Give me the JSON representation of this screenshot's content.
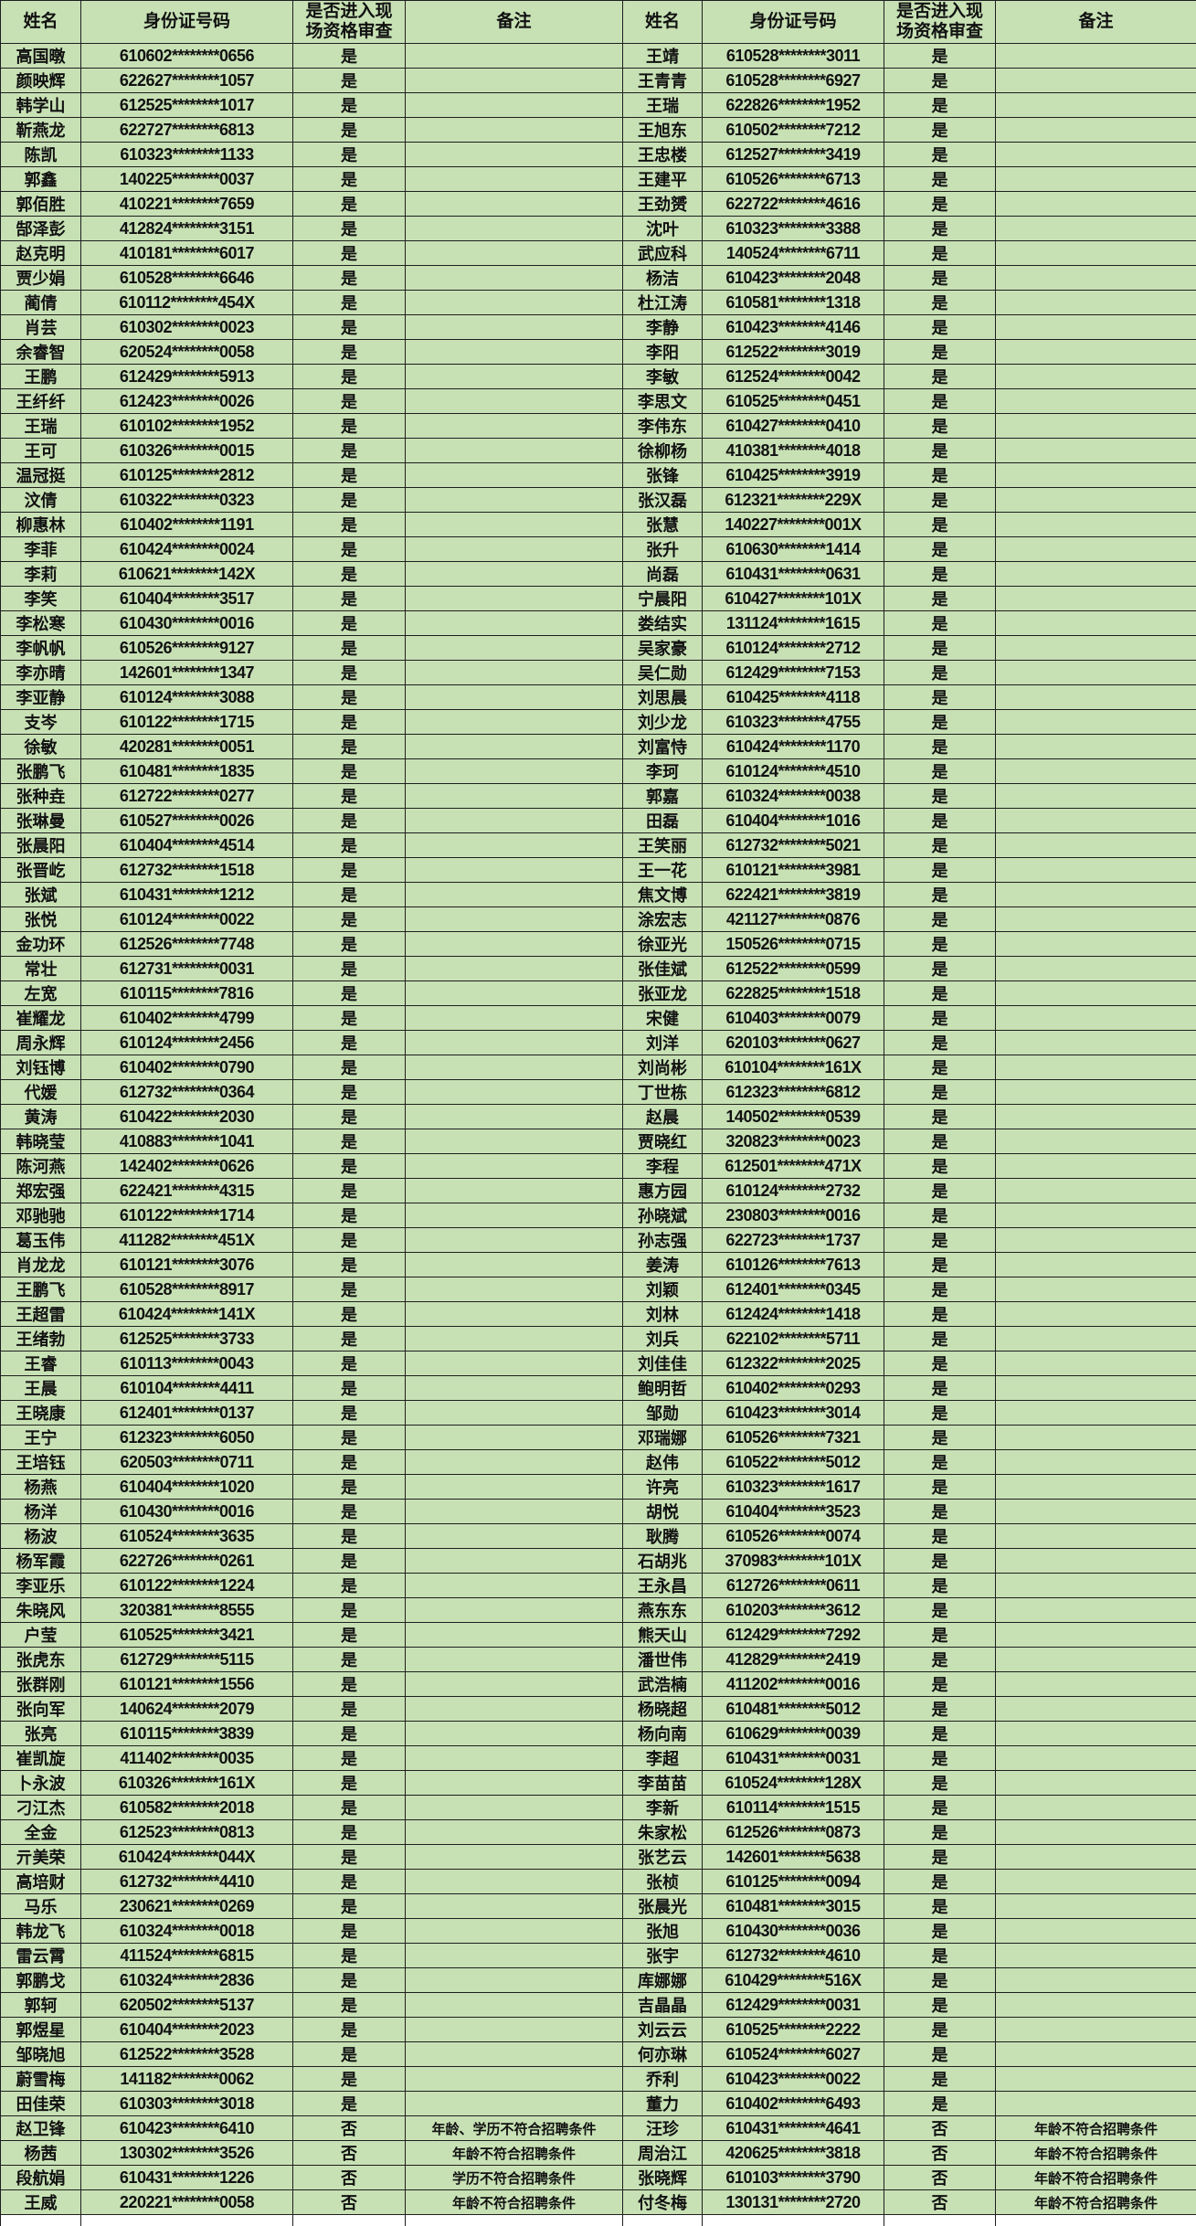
{
  "page": {
    "background": "#ffffff"
  },
  "table": {
    "colors": {
      "cell_fill": "#c7e1b4",
      "border": "#1f1f1f",
      "text": "#111111"
    },
    "headers": {
      "name": "姓名",
      "id": "身份证号码",
      "review": "是否进入现场资格审查",
      "remark": "备注"
    },
    "left_rows": [
      [
        "高国暾",
        "610602********0656",
        "是",
        ""
      ],
      [
        "颜映辉",
        "622627********1057",
        "是",
        ""
      ],
      [
        "韩学山",
        "612525********1017",
        "是",
        ""
      ],
      [
        "靳燕龙",
        "622727********6813",
        "是",
        ""
      ],
      [
        "陈凯",
        "610323********1133",
        "是",
        ""
      ],
      [
        "郭鑫",
        "140225********0037",
        "是",
        ""
      ],
      [
        "郭佰胜",
        "410221********7659",
        "是",
        ""
      ],
      [
        "郜泽彭",
        "412824********3151",
        "是",
        ""
      ],
      [
        "赵克明",
        "410181********6017",
        "是",
        ""
      ],
      [
        "贾少娟",
        "610528********6646",
        "是",
        ""
      ],
      [
        "蔺倩",
        "610112********454X",
        "是",
        ""
      ],
      [
        "肖芸",
        "610302********0023",
        "是",
        ""
      ],
      [
        "余睿智",
        "620524********0058",
        "是",
        ""
      ],
      [
        "王鹏",
        "612429********5913",
        "是",
        ""
      ],
      [
        "王纤纤",
        "612423********0026",
        "是",
        ""
      ],
      [
        "王瑞",
        "610102********1952",
        "是",
        ""
      ],
      [
        "王可",
        "610326********0015",
        "是",
        ""
      ],
      [
        "温冠挺",
        "610125********2812",
        "是",
        ""
      ],
      [
        "汶倩",
        "610322********0323",
        "是",
        ""
      ],
      [
        "柳惠林",
        "610402********1191",
        "是",
        ""
      ],
      [
        "李菲",
        "610424********0024",
        "是",
        ""
      ],
      [
        "李莉",
        "610621********142X",
        "是",
        ""
      ],
      [
        "李笑",
        "610404********3517",
        "是",
        ""
      ],
      [
        "李松寒",
        "610430********0016",
        "是",
        ""
      ],
      [
        "李帆帆",
        "610526********9127",
        "是",
        ""
      ],
      [
        "李亦晴",
        "142601********1347",
        "是",
        ""
      ],
      [
        "李亚静",
        "610124********3088",
        "是",
        ""
      ],
      [
        "支岑",
        "610122********1715",
        "是",
        ""
      ],
      [
        "徐敏",
        "420281********0051",
        "是",
        ""
      ],
      [
        "张鹏飞",
        "610481********1835",
        "是",
        ""
      ],
      [
        "张种垚",
        "612722********0277",
        "是",
        ""
      ],
      [
        "张琳曼",
        "610527********0026",
        "是",
        ""
      ],
      [
        "张晨阳",
        "610404********4514",
        "是",
        ""
      ],
      [
        "张晋屹",
        "612732********1518",
        "是",
        ""
      ],
      [
        "张斌",
        "610431********1212",
        "是",
        ""
      ],
      [
        "张悦",
        "610124********0022",
        "是",
        ""
      ],
      [
        "金功环",
        "612526********7748",
        "是",
        ""
      ],
      [
        "常壮",
        "612731********0031",
        "是",
        ""
      ],
      [
        "左宽",
        "610115********7816",
        "是",
        ""
      ],
      [
        "崔耀龙",
        "610402********4799",
        "是",
        ""
      ],
      [
        "周永辉",
        "610124********2456",
        "是",
        ""
      ],
      [
        "刘钰博",
        "610402********0790",
        "是",
        ""
      ],
      [
        "代媛",
        "612732********0364",
        "是",
        ""
      ],
      [
        "黄涛",
        "610422********2030",
        "是",
        ""
      ],
      [
        "韩晓莹",
        "410883********1041",
        "是",
        ""
      ],
      [
        "陈河燕",
        "142402********0626",
        "是",
        ""
      ],
      [
        "郑宏强",
        "622421********4315",
        "是",
        ""
      ],
      [
        "邓驰驰",
        "610122********1714",
        "是",
        ""
      ],
      [
        "葛玉伟",
        "411282********451X",
        "是",
        ""
      ],
      [
        "肖龙龙",
        "610121********3076",
        "是",
        ""
      ],
      [
        "王鹏飞",
        "610528********8917",
        "是",
        ""
      ],
      [
        "王超雷",
        "610424********141X",
        "是",
        ""
      ],
      [
        "王绪勃",
        "612525********3733",
        "是",
        ""
      ],
      [
        "王睿",
        "610113********0043",
        "是",
        ""
      ],
      [
        "王晨",
        "610104********4411",
        "是",
        ""
      ],
      [
        "王晓康",
        "612401********0137",
        "是",
        ""
      ],
      [
        "王宁",
        "612323********6050",
        "是",
        ""
      ],
      [
        "王培钰",
        "620503********0711",
        "是",
        ""
      ],
      [
        "杨燕",
        "610404********1020",
        "是",
        ""
      ],
      [
        "杨洋",
        "610430********0016",
        "是",
        ""
      ],
      [
        "杨波",
        "610524********3635",
        "是",
        ""
      ],
      [
        "杨军霞",
        "622726********0261",
        "是",
        ""
      ],
      [
        "李亚乐",
        "610122********1224",
        "是",
        ""
      ],
      [
        "朱晓风",
        "320381********8555",
        "是",
        ""
      ],
      [
        "户莹",
        "610525********3421",
        "是",
        ""
      ],
      [
        "张虎东",
        "612729********5115",
        "是",
        ""
      ],
      [
        "张群刚",
        "610121********1556",
        "是",
        ""
      ],
      [
        "张向军",
        "140624********2079",
        "是",
        ""
      ],
      [
        "张亮",
        "610115********3839",
        "是",
        ""
      ],
      [
        "崔凯旋",
        "411402********0035",
        "是",
        ""
      ],
      [
        "卜永波",
        "610326********161X",
        "是",
        ""
      ],
      [
        "刁江杰",
        "610582********2018",
        "是",
        ""
      ],
      [
        "全金",
        "612523********0813",
        "是",
        ""
      ],
      [
        "亓美荣",
        "610424********044X",
        "是",
        ""
      ],
      [
        "高培财",
        "612732********4410",
        "是",
        ""
      ],
      [
        "马乐",
        "230621********0269",
        "是",
        ""
      ],
      [
        "韩龙飞",
        "610324********0018",
        "是",
        ""
      ],
      [
        "雷云霄",
        "411524********6815",
        "是",
        ""
      ],
      [
        "郭鹏戈",
        "610324********2836",
        "是",
        ""
      ],
      [
        "郭轲",
        "620502********5137",
        "是",
        ""
      ],
      [
        "郭煜星",
        "610404********2023",
        "是",
        ""
      ],
      [
        "邹晓旭",
        "612522********3528",
        "是",
        ""
      ],
      [
        "蔚雪梅",
        "141182********0062",
        "是",
        ""
      ],
      [
        "田佳荣",
        "610303********3018",
        "是",
        ""
      ],
      [
        "赵卫锋",
        "610423********6410",
        "否",
        "年龄、学历不符合招聘条件"
      ],
      [
        "杨茜",
        "130302********3526",
        "否",
        "年龄不符合招聘条件"
      ],
      [
        "段航娟",
        "610431********1226",
        "否",
        "学历不符合招聘条件"
      ],
      [
        "王威",
        "220221********0058",
        "否",
        "年龄不符合招聘条件"
      ]
    ],
    "right_rows": [
      [
        "王靖",
        "610528********3011",
        "是",
        ""
      ],
      [
        "王青青",
        "610528********6927",
        "是",
        ""
      ],
      [
        "王瑞",
        "622826********1952",
        "是",
        ""
      ],
      [
        "王旭东",
        "610502********7212",
        "是",
        ""
      ],
      [
        "王忠楼",
        "612527********3419",
        "是",
        ""
      ],
      [
        "王建平",
        "610526********6713",
        "是",
        ""
      ],
      [
        "王劲赟",
        "622722********4616",
        "是",
        ""
      ],
      [
        "沈叶",
        "610323********3388",
        "是",
        ""
      ],
      [
        "武应科",
        "140524********6711",
        "是",
        ""
      ],
      [
        "杨洁",
        "610423********2048",
        "是",
        ""
      ],
      [
        "杜江涛",
        "610581********1318",
        "是",
        ""
      ],
      [
        "李静",
        "610423********4146",
        "是",
        ""
      ],
      [
        "李阳",
        "612522********3019",
        "是",
        ""
      ],
      [
        "李敏",
        "612524********0042",
        "是",
        ""
      ],
      [
        "李思文",
        "610525********0451",
        "是",
        ""
      ],
      [
        "李伟东",
        "610427********0410",
        "是",
        ""
      ],
      [
        "徐柳杨",
        "410381********4018",
        "是",
        ""
      ],
      [
        "张锋",
        "610425********3919",
        "是",
        ""
      ],
      [
        "张汉磊",
        "612321********229X",
        "是",
        ""
      ],
      [
        "张慧",
        "140227********001X",
        "是",
        ""
      ],
      [
        "张升",
        "610630********1414",
        "是",
        ""
      ],
      [
        "尚磊",
        "610431********0631",
        "是",
        ""
      ],
      [
        "宁晨阳",
        "610427********101X",
        "是",
        ""
      ],
      [
        "娄结实",
        "131124********1615",
        "是",
        ""
      ],
      [
        "吴家豪",
        "610124********2712",
        "是",
        ""
      ],
      [
        "吴仁勋",
        "612429********7153",
        "是",
        ""
      ],
      [
        "刘思晨",
        "610425********4118",
        "是",
        ""
      ],
      [
        "刘少龙",
        "610323********4755",
        "是",
        ""
      ],
      [
        "刘富恃",
        "610424********1170",
        "是",
        ""
      ],
      [
        "李珂",
        "610124********4510",
        "是",
        ""
      ],
      [
        "郭嘉",
        "610324********0038",
        "是",
        ""
      ],
      [
        "田磊",
        "610404********1016",
        "是",
        ""
      ],
      [
        "王笑丽",
        "612732********5021",
        "是",
        ""
      ],
      [
        "王一花",
        "610121********3981",
        "是",
        ""
      ],
      [
        "焦文博",
        "622421********3819",
        "是",
        ""
      ],
      [
        "涂宏志",
        "421127********0876",
        "是",
        ""
      ],
      [
        "徐亚光",
        "150526********0715",
        "是",
        ""
      ],
      [
        "张佳斌",
        "612522********0599",
        "是",
        ""
      ],
      [
        "张亚龙",
        "622825********1518",
        "是",
        ""
      ],
      [
        "宋健",
        "610403********0079",
        "是",
        ""
      ],
      [
        "刘洋",
        "620103********0627",
        "是",
        ""
      ],
      [
        "刘尚彬",
        "610104********161X",
        "是",
        ""
      ],
      [
        "丁世栋",
        "612323********6812",
        "是",
        ""
      ],
      [
        "赵晨",
        "140502********0539",
        "是",
        ""
      ],
      [
        "贾晓红",
        "320823********0023",
        "是",
        ""
      ],
      [
        "李程",
        "612501********471X",
        "是",
        ""
      ],
      [
        "惠方园",
        "610124********2732",
        "是",
        ""
      ],
      [
        "孙晓斌",
        "230803********0016",
        "是",
        ""
      ],
      [
        "孙志强",
        "622723********1737",
        "是",
        ""
      ],
      [
        "姜涛",
        "610126********7613",
        "是",
        ""
      ],
      [
        "刘颖",
        "612401********0345",
        "是",
        ""
      ],
      [
        "刘林",
        "612424********1418",
        "是",
        ""
      ],
      [
        "刘兵",
        "622102********5711",
        "是",
        ""
      ],
      [
        "刘佳佳",
        "612322********2025",
        "是",
        ""
      ],
      [
        "鲍明哲",
        "610402********0293",
        "是",
        ""
      ],
      [
        "邹勋",
        "610423********3014",
        "是",
        ""
      ],
      [
        "邓瑞娜",
        "610526********7321",
        "是",
        ""
      ],
      [
        "赵伟",
        "610522********5012",
        "是",
        ""
      ],
      [
        "许亮",
        "610323********1617",
        "是",
        ""
      ],
      [
        "胡悦",
        "610404********3523",
        "是",
        ""
      ],
      [
        "耿腾",
        "610526********0074",
        "是",
        ""
      ],
      [
        "石胡兆",
        "370983********101X",
        "是",
        ""
      ],
      [
        "王永昌",
        "612726********0611",
        "是",
        ""
      ],
      [
        "燕东东",
        "610203********3612",
        "是",
        ""
      ],
      [
        "熊天山",
        "612429********7292",
        "是",
        ""
      ],
      [
        "潘世伟",
        "412829********2419",
        "是",
        ""
      ],
      [
        "武浩楠",
        "411202********0016",
        "是",
        ""
      ],
      [
        "杨晓超",
        "610481********5012",
        "是",
        ""
      ],
      [
        "杨向南",
        "610629********0039",
        "是",
        ""
      ],
      [
        "李超",
        "610431********0031",
        "是",
        ""
      ],
      [
        "李苗苗",
        "610524********128X",
        "是",
        ""
      ],
      [
        "李新",
        "610114********1515",
        "是",
        ""
      ],
      [
        "朱家松",
        "612526********0873",
        "是",
        ""
      ],
      [
        "张艺云",
        "142601********5638",
        "是",
        ""
      ],
      [
        "张桢",
        "610125********0094",
        "是",
        ""
      ],
      [
        "张晨光",
        "610481********3015",
        "是",
        ""
      ],
      [
        "张旭",
        "610430********0036",
        "是",
        ""
      ],
      [
        "张宇",
        "612732********4610",
        "是",
        ""
      ],
      [
        "库娜娜",
        "610429********516X",
        "是",
        ""
      ],
      [
        "吉晶晶",
        "612429********0031",
        "是",
        ""
      ],
      [
        "刘云云",
        "610525********2222",
        "是",
        ""
      ],
      [
        "何亦琳",
        "610524********6027",
        "是",
        ""
      ],
      [
        "乔利",
        "610423********0022",
        "是",
        ""
      ],
      [
        "董力",
        "610402********6493",
        "是",
        ""
      ],
      [
        "汪珍",
        "610431********4641",
        "否",
        "年龄不符合招聘条件"
      ],
      [
        "周治江",
        "420625********3818",
        "否",
        "年龄不符合招聘条件"
      ],
      [
        "张晓辉",
        "610103********3790",
        "否",
        "年龄不符合招聘条件"
      ],
      [
        "付冬梅",
        "130131********2720",
        "否",
        "年龄不符合招聘条件"
      ]
    ]
  }
}
